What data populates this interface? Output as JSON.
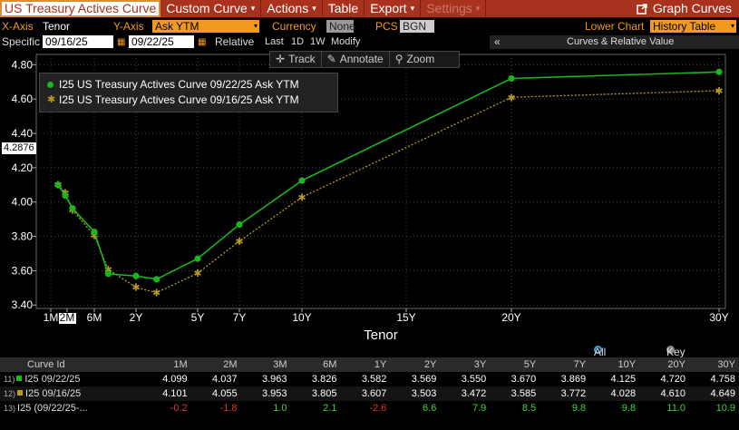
{
  "menubar": {
    "title": "US Treasury Actives Curve",
    "menus": [
      {
        "label": "Custom Curve",
        "caret": "▾",
        "enabled": true
      },
      {
        "label": "Actions",
        "caret": "▾",
        "enabled": true
      },
      {
        "label": "Table",
        "caret": "",
        "enabled": true
      },
      {
        "label": "Export",
        "caret": "▾",
        "enabled": true
      },
      {
        "label": "Settings",
        "caret": "▾",
        "enabled": false
      }
    ],
    "graph_curves_label": "Graph Curves"
  },
  "settings": {
    "xaxis_label": "X-Axis",
    "xaxis_value": "Tenor",
    "yaxis_label": "Y-Axis",
    "yaxis_value": "Ask YTM",
    "currency_label": "Currency",
    "currency_value": "None",
    "pcs_label": "PCS",
    "pcs_value": "BGN",
    "lower_chart_label": "Lower Chart",
    "lower_chart_value": "History Table"
  },
  "dates": {
    "specific_label": "Specific",
    "date1": "09/16/25",
    "date2": "09/22/25",
    "relative_label": "Relative",
    "last_label": "Last",
    "opt_1d": "1D",
    "opt_1w": "1W",
    "modify_label": "Modify",
    "collapse": "«",
    "panel_title": "Curves & Relative Value"
  },
  "toolbar": {
    "track": "Track",
    "annotate": "Annotate",
    "zoom": "Zoom"
  },
  "cursor_value": "4.2876",
  "chart_data": {
    "type": "line",
    "xlabel": "Tenor",
    "ylabel": "",
    "ylim": [
      3.38,
      4.86
    ],
    "yticks": [
      "4.80",
      "4.60",
      "4.40",
      "4.20",
      "4.00",
      "3.80",
      "3.60",
      "3.40"
    ],
    "xtick_labels": [
      "1M",
      "2M",
      "6M",
      "2Y",
      "5Y",
      "7Y",
      "10Y",
      "15Y",
      "20Y",
      "30Y"
    ],
    "tenors": [
      "1M",
      "2M",
      "3M",
      "6M",
      "1Y",
      "2Y",
      "3Y",
      "5Y",
      "7Y",
      "10Y",
      "20Y",
      "30Y"
    ],
    "tenor_years": [
      0.0833,
      0.1667,
      0.25,
      0.5,
      1,
      2,
      3,
      5,
      7,
      10,
      20,
      30
    ],
    "highlight_xtick": "2M",
    "series": [
      {
        "name": "I25 US Treasury Actives Curve 09/22/25 Ask YTM",
        "color": "#19b61e",
        "marker": "dot",
        "values": [
          4.099,
          4.037,
          3.963,
          3.826,
          3.582,
          3.569,
          3.55,
          3.67,
          3.869,
          4.125,
          4.72,
          4.758
        ]
      },
      {
        "name": "I25 US Treasury Actives Curve 09/16/25 Ask YTM",
        "color": "#b89a1e",
        "marker": "star",
        "values": [
          4.101,
          4.055,
          3.953,
          3.805,
          3.607,
          3.503,
          3.472,
          3.585,
          3.772,
          4.028,
          4.61,
          4.649
        ]
      }
    ]
  },
  "table": {
    "all_tenors": "All Tenors",
    "key_tenors": "Key Tenors",
    "columns": [
      "Curve Id",
      "1M",
      "2M",
      "3M",
      "6M",
      "1Y",
      "2Y",
      "3Y",
      "5Y",
      "7Y",
      "10Y",
      "20Y",
      "30Y"
    ],
    "rows": [
      {
        "num": "11)",
        "id": "I25 09/22/25",
        "color": "#19b61e",
        "values": [
          "4.099",
          "4.037",
          "3.963",
          "3.826",
          "3.582",
          "3.569",
          "3.550",
          "3.670",
          "3.869",
          "4.125",
          "4.720",
          "4.758"
        ]
      },
      {
        "num": "12)",
        "id": "I25 09/16/25",
        "color": "#b89a1e",
        "values": [
          "4.101",
          "4.055",
          "3.953",
          "3.805",
          "3.607",
          "3.503",
          "3.472",
          "3.585",
          "3.772",
          "4.028",
          "4.610",
          "4.649"
        ]
      },
      {
        "num": "13)",
        "id": "I25 (09/22/25-...",
        "color": "",
        "values": [
          "-0.2",
          "-1.8",
          "1.0",
          "2.1",
          "-2.6",
          "6.6",
          "7.9",
          "8.5",
          "9.8",
          "9.8",
          "11.0",
          "10.9"
        ]
      }
    ]
  },
  "colors": {
    "brand": "#a8321e",
    "accent": "#f39a1e",
    "green": "#19b61e",
    "gold": "#b89a1e"
  }
}
